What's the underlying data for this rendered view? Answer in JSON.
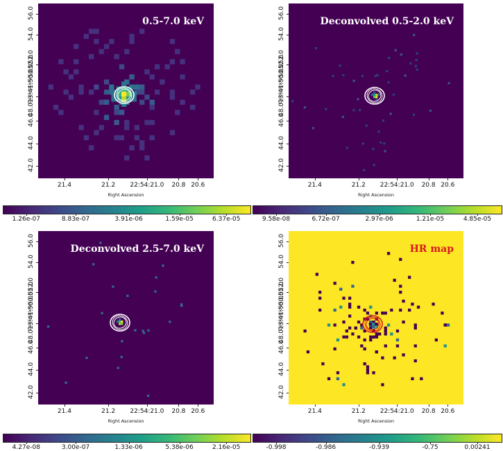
{
  "axis": {
    "xlabel": "Right Ascension",
    "ylabel": "Declination",
    "yticks": [
      "56.0",
      "54.0",
      "50.052.0",
      "48.013:41:50.052.0",
      "46.0",
      "44.0",
      "42.0"
    ],
    "xticks": [
      "21.4",
      "21.2",
      "22:54:21.0",
      "20.8",
      "20.6"
    ]
  },
  "panels": [
    {
      "title": "0.5-7.0 keV",
      "colorbar": [
        "1.26e-07",
        "8.83e-07",
        "3.91e-06",
        "1.59e-05",
        "6.37e-05"
      ]
    },
    {
      "title": "Deconvolved 0.5-2.0 keV",
      "colorbar": [
        "9.58e-08",
        "6.72e-07",
        "2.97e-06",
        "1.21e-05",
        "4.85e-05"
      ]
    },
    {
      "title": "Deconvolved 2.5-7.0 keV",
      "colorbar": [
        "4.27e-08",
        "3.00e-07",
        "1.33e-06",
        "5.38e-06",
        "2.16e-05"
      ]
    },
    {
      "title": "HR map",
      "colorbar": [
        "-0.998",
        "-0.986",
        "-0.939",
        "-0.75",
        "0.00241"
      ]
    }
  ],
  "colors": {
    "background": "#440154",
    "hr_background": "#fde725",
    "contour": "#ffffff",
    "hr_contour": "#d7191c",
    "title_text": "#ffffff",
    "hr_title_text": "#d7191c"
  }
}
